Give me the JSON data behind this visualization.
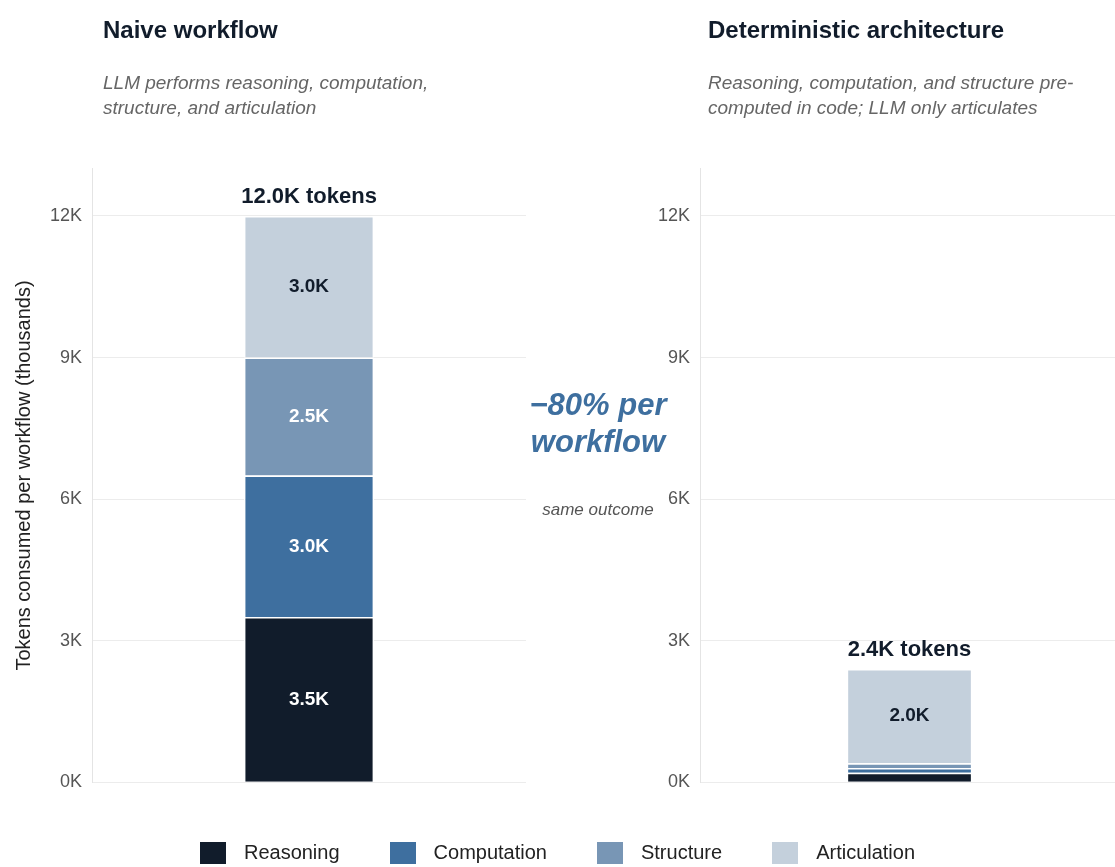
{
  "chart_data": [
    {
      "type": "bar",
      "title": "Naive workflow",
      "subtitle": "LLM performs reasoning, computation, structure, and articulation",
      "ylabel": "Tokens consumed per workflow (thousands)",
      "categories": [
        null
      ],
      "stacked": true,
      "ylim": [
        0,
        13
      ],
      "yticks": [
        {
          "value": 0,
          "label": "0K"
        },
        {
          "value": 3,
          "label": "3K"
        },
        {
          "value": 6,
          "label": "6K"
        },
        {
          "value": 9,
          "label": "9K"
        },
        {
          "value": 12,
          "label": "12K"
        }
      ],
      "grid": "y",
      "tick_labels": "y",
      "legend": "bottom",
      "totals": [
        "12.0K tokens"
      ],
      "annotations": [
        "−80% per workflow",
        "same outcome"
      ],
      "series": [
        {
          "name": "Reasoning",
          "color": "#111c2b",
          "values": [
            3.5
          ],
          "value_labels": [
            "3.5K"
          ]
        },
        {
          "name": "Computation",
          "color": "#3e6f9f",
          "values": [
            3.0
          ],
          "value_labels": [
            "3.0K"
          ]
        },
        {
          "name": "Structure",
          "color": "#7896b5",
          "values": [
            2.5
          ],
          "value_labels": [
            "2.5K"
          ]
        },
        {
          "name": "Articulation",
          "color": "#c4d0dc",
          "values": [
            3.0
          ],
          "value_labels": [
            "3.0K"
          ]
        }
      ]
    },
    {
      "type": "bar",
      "title": "Deterministic architecture",
      "subtitle": "Reasoning, computation, and structure pre-computed in code; LLM only articulates",
      "categories": [
        null
      ],
      "stacked": true,
      "ylim": [
        0,
        13
      ],
      "yticks": [
        {
          "value": 0,
          "label": "0K"
        },
        {
          "value": 3,
          "label": "3K"
        },
        {
          "value": 6,
          "label": "6K"
        },
        {
          "value": 9,
          "label": "9K"
        },
        {
          "value": 12,
          "label": "12K"
        }
      ],
      "grid": "y",
      "tick_labels": "y",
      "totals": [
        "2.4K tokens"
      ],
      "series": [
        {
          "color": "#111c2b",
          "values": [
            0.2
          ],
          "value_labels": [
            null
          ]
        },
        {
          "color": "#3e6f9f",
          "values": [
            0.1
          ],
          "value_labels": [
            null
          ]
        },
        {
          "color": "#7896b5",
          "values": [
            0.1
          ],
          "value_labels": [
            null
          ]
        },
        {
          "color": "#c4d0dc",
          "values": [
            2.0
          ],
          "value_labels": [
            "2.0K"
          ]
        }
      ]
    }
  ]
}
